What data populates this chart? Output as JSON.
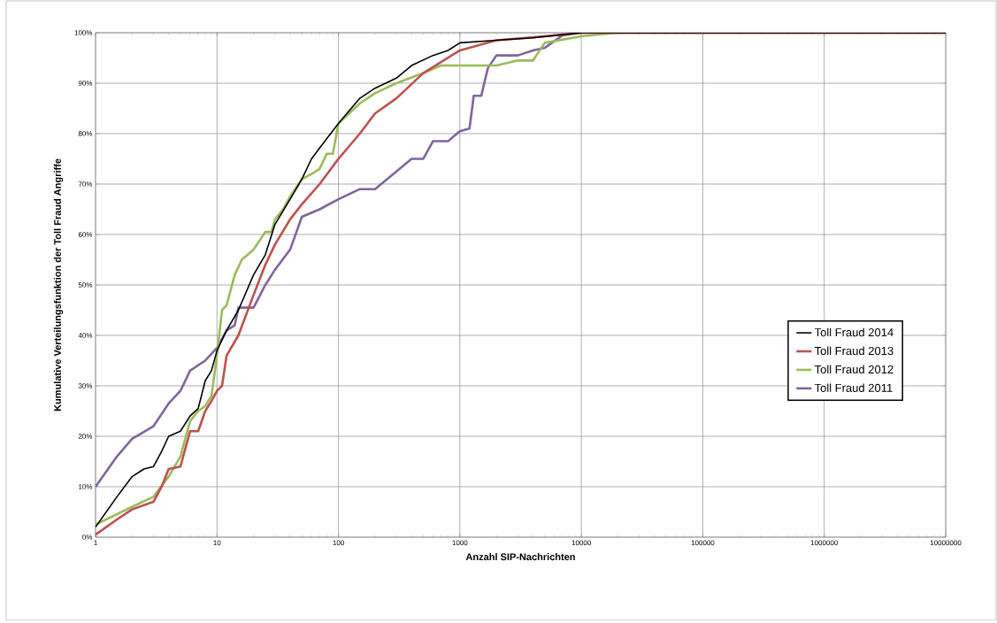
{
  "chart_data": {
    "type": "line",
    "xlabel": "Anzahl SIP-Nachrichten",
    "ylabel": "Kumulative Verteilungsfunktion der Toll Fraud Angriffe",
    "log": "x",
    "grid": true,
    "legend": "right",
    "marker": "none",
    "line_style": "solid",
    "xlim": [
      1,
      10000000
    ],
    "xticks": [
      1,
      10,
      100,
      1000,
      10000,
      100000,
      1000000,
      10000000
    ],
    "ylim": [
      0,
      100
    ],
    "yticks": [
      {
        "value": 0,
        "label": "0%"
      },
      {
        "value": 10,
        "label": "10%"
      },
      {
        "value": 20,
        "label": "20%"
      },
      {
        "value": 30,
        "label": "30%"
      },
      {
        "value": 40,
        "label": "40%"
      },
      {
        "value": 50,
        "label": "50%"
      },
      {
        "value": 60,
        "label": "60%"
      },
      {
        "value": 70,
        "label": "70%"
      },
      {
        "value": 80,
        "label": "80%"
      },
      {
        "value": 90,
        "label": "90%"
      },
      {
        "value": 100,
        "label": "100%"
      }
    ],
    "series": [
      {
        "name": "Toll Fraud 2014",
        "color": "#000000",
        "x": [
          1,
          1.5,
          2,
          2.5,
          3,
          3.5,
          4,
          5,
          6,
          7,
          8,
          9,
          10,
          12,
          15,
          20,
          25,
          30,
          40,
          50,
          60,
          80,
          100,
          150,
          200,
          300,
          400,
          600,
          800,
          1000,
          2000,
          4000,
          10000,
          10000000
        ],
        "values": [
          2,
          8,
          12,
          13.5,
          14,
          17,
          20,
          21,
          24,
          25.5,
          31,
          33,
          37,
          41,
          45,
          52,
          56,
          62,
          67,
          71,
          75,
          79,
          82,
          87,
          89,
          91,
          93.5,
          95.5,
          96.5,
          98,
          98.5,
          99,
          100,
          100
        ]
      },
      {
        "name": "Toll Fraud 2013",
        "color": "#c0504d",
        "x": [
          1,
          1.5,
          2,
          3,
          3.5,
          4,
          5,
          6,
          7,
          8,
          9,
          10,
          11,
          12,
          15,
          20,
          25,
          30,
          40,
          50,
          70,
          100,
          150,
          200,
          300,
          500,
          1000,
          2000,
          5000,
          10000,
          10000000
        ],
        "values": [
          0.5,
          3.5,
          5.5,
          7,
          10,
          13.5,
          14,
          21,
          21,
          25,
          27,
          29,
          30,
          36,
          40,
          48,
          54,
          58,
          63,
          66,
          70,
          75,
          80,
          84,
          87,
          92,
          96.5,
          98.5,
          99.3,
          100,
          100
        ]
      },
      {
        "name": "Toll Fraud 2012",
        "color": "#9bbb59",
        "x": [
          1,
          2,
          3,
          4,
          5,
          6,
          7,
          8,
          9,
          10,
          11,
          12,
          14,
          16,
          20,
          25,
          28,
          30,
          35,
          40,
          50,
          60,
          70,
          80,
          90,
          100,
          150,
          200,
          300,
          500,
          700,
          2000,
          3000,
          4000,
          5000,
          10000,
          20000,
          10000000
        ],
        "values": [
          2.5,
          6,
          8,
          12,
          16,
          23,
          25,
          26,
          28,
          36,
          45,
          46,
          52,
          55,
          57,
          60.5,
          60.5,
          63,
          65,
          67.5,
          71,
          72,
          73,
          76,
          76,
          82,
          86,
          88,
          90,
          92,
          93.5,
          93.5,
          94.5,
          94.5,
          98,
          99.3,
          100,
          100
        ]
      },
      {
        "name": "Toll Fraud 2011",
        "color": "#8064a2",
        "x": [
          1,
          1.5,
          2,
          3,
          4,
          5,
          6,
          8,
          10,
          12,
          14,
          15,
          20,
          25,
          30,
          40,
          50,
          70,
          100,
          150,
          200,
          300,
          400,
          500,
          600,
          800,
          1000,
          1200,
          1300,
          1500,
          1700,
          2000,
          3000,
          4000,
          5000,
          7000,
          10000,
          10000000
        ],
        "values": [
          10,
          16,
          19.5,
          22,
          26.5,
          29,
          33,
          35,
          37.5,
          41,
          42,
          45.5,
          45.5,
          50,
          53,
          57,
          63.5,
          65,
          67,
          69,
          69,
          72.5,
          75,
          75,
          78.5,
          78.5,
          80.5,
          81,
          87.5,
          87.5,
          93,
          95.5,
          95.5,
          96.5,
          97,
          99.5,
          100,
          100
        ]
      }
    ]
  }
}
